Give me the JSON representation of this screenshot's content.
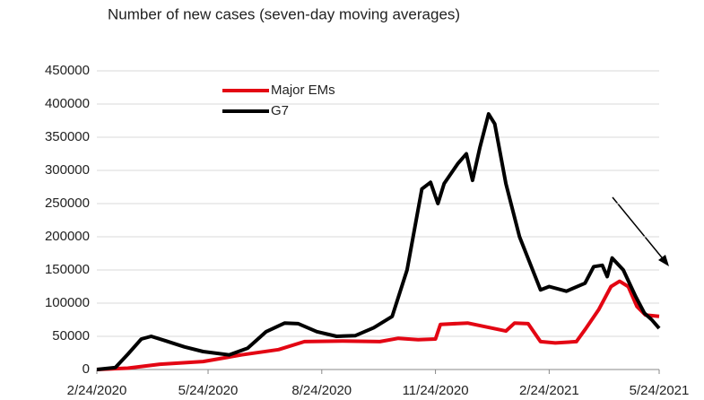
{
  "chart_data": {
    "type": "line",
    "subtitle": "Number of new cases (seven-day moving averages)",
    "series": [
      {
        "name": "Major EMs",
        "color": "#e30613",
        "x": [
          "2/24/2020",
          "3/20/2020",
          "4/15/2020",
          "5/20/2020",
          "6/20/2020",
          "7/20/2020",
          "8/10/2020",
          "9/10/2020",
          "10/10/2020",
          "10/25/2020",
          "11/10/2020",
          "11/24/2020",
          "11/28/2020",
          "12/20/2020",
          "1/20/2021",
          "1/27/2021",
          "2/7/2021",
          "2/17/2021",
          "3/1/2021",
          "3/18/2021",
          "3/25/2021",
          "4/5/2021",
          "4/15/2021",
          "4/22/2021",
          "4/29/2021",
          "5/6/2021",
          "5/13/2021",
          "5/24/2021"
        ],
        "values": [
          0,
          2000,
          8000,
          12000,
          22000,
          30000,
          42000,
          43000,
          42000,
          47000,
          45000,
          46000,
          68000,
          70000,
          58000,
          70000,
          69000,
          42000,
          40000,
          42000,
          60000,
          90000,
          125000,
          133000,
          125000,
          95000,
          82000,
          80000
        ]
      },
      {
        "name": "G7",
        "color": "#000000",
        "x": [
          "2/24/2020",
          "3/10/2020",
          "3/20/2020",
          "3/31/2020",
          "4/8/2020",
          "4/20/2020",
          "5/5/2020",
          "5/20/2020",
          "6/10/2020",
          "6/25/2020",
          "7/10/2020",
          "7/25/2020",
          "8/5/2020",
          "8/20/2020",
          "9/5/2020",
          "9/20/2020",
          "10/5/2020",
          "10/20/2020",
          "11/1/2020",
          "11/13/2020",
          "11/20/2020",
          "11/26/2020",
          "12/1/2020",
          "12/12/2020",
          "12/19/2020",
          "12/24/2020",
          "12/30/2020",
          "1/6/2021",
          "1/11/2021",
          "1/20/2021",
          "1/31/2021",
          "2/17/2021",
          "2/24/2021",
          "3/10/2021",
          "3/25/2021",
          "4/1/2021",
          "4/8/2021",
          "4/12/2021",
          "4/16/2021",
          "4/25/2021",
          "5/5/2021",
          "5/12/2021",
          "5/18/2021",
          "5/24/2021"
        ],
        "values": [
          0,
          3000,
          23000,
          46000,
          50000,
          43000,
          34000,
          27000,
          22000,
          32000,
          57000,
          70000,
          69000,
          57000,
          50000,
          51000,
          63000,
          80000,
          150000,
          272000,
          282000,
          250000,
          280000,
          310000,
          325000,
          285000,
          335000,
          385000,
          370000,
          280000,
          200000,
          120000,
          125000,
          118000,
          130000,
          155000,
          157000,
          140000,
          168000,
          150000,
          110000,
          85000,
          75000,
          62000
        ]
      }
    ],
    "xlim": [
      "2/24/2020",
      "5/24/2021"
    ],
    "xticks": [
      "2/24/2020",
      "5/24/2020",
      "8/24/2020",
      "11/24/2020",
      "2/24/2021",
      "5/24/2021"
    ],
    "ylim": [
      0,
      450000
    ],
    "yticks": [
      0,
      50000,
      100000,
      150000,
      200000,
      250000,
      300000,
      350000,
      400000,
      450000
    ],
    "grid": true
  }
}
